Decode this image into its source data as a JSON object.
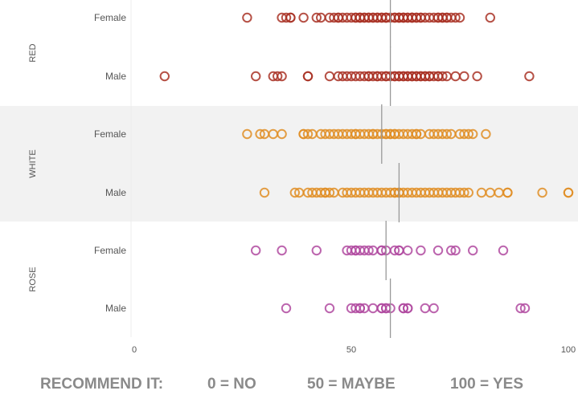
{
  "chart_data": {
    "type": "scatter",
    "x_range": [
      0,
      100
    ],
    "x_ticks": [
      "0",
      "50",
      "100"
    ],
    "reference_lines": "group mean",
    "colors": {
      "RED": "#a93226",
      "WHITE": "#e08e24",
      "ROSE": "#b04aa0"
    },
    "groups": [
      {
        "name": "RED",
        "rows": [
          {
            "label": "Female",
            "mean": 59,
            "values": [
              26,
              34,
              35,
              36,
              36,
              39,
              42,
              43,
              45,
              46,
              47,
              47,
              48,
              49,
              50,
              51,
              51,
              52,
              52,
              52,
              53,
              53,
              54,
              54,
              55,
              55,
              56,
              56,
              57,
              57,
              58,
              58,
              58,
              59,
              60,
              60,
              61,
              61,
              61,
              62,
              62,
              62,
              63,
              63,
              64,
              64,
              64,
              65,
              65,
              66,
              66,
              67,
              68,
              69,
              70,
              70,
              71,
              71,
              72,
              72,
              73,
              74,
              75,
              82
            ]
          },
          {
            "label": "Male",
            "mean": 59,
            "values": [
              7,
              28,
              32,
              33,
              34,
              40,
              40,
              45,
              47,
              48,
              49,
              50,
              51,
              52,
              53,
              54,
              54,
              55,
              56,
              56,
              57,
              58,
              58,
              59,
              60,
              60,
              61,
              61,
              62,
              62,
              63,
              63,
              64,
              64,
              65,
              65,
              66,
              66,
              67,
              67,
              68,
              68,
              69,
              70,
              70,
              71,
              72,
              74,
              76,
              79,
              91
            ]
          }
        ]
      },
      {
        "name": "WHITE",
        "rows": [
          {
            "label": "Female",
            "mean": 57,
            "values": [
              26,
              29,
              30,
              32,
              34,
              39,
              39,
              40,
              41,
              43,
              44,
              45,
              46,
              47,
              48,
              49,
              50,
              51,
              51,
              52,
              53,
              54,
              55,
              55,
              56,
              57,
              58,
              58,
              59,
              59,
              60,
              60,
              61,
              62,
              63,
              64,
              65,
              65,
              66,
              68,
              69,
              70,
              71,
              72,
              73,
              75,
              76,
              77,
              78,
              81
            ]
          },
          {
            "label": "Male",
            "mean": 61,
            "values": [
              30,
              37,
              38,
              40,
              41,
              42,
              43,
              44,
              44,
              45,
              46,
              48,
              49,
              50,
              51,
              52,
              53,
              54,
              55,
              56,
              57,
              58,
              59,
              60,
              60,
              61,
              61,
              62,
              63,
              64,
              65,
              66,
              67,
              68,
              69,
              70,
              71,
              72,
              73,
              74,
              75,
              76,
              77,
              80,
              82,
              84,
              86,
              86,
              94,
              100,
              100
            ]
          }
        ]
      },
      {
        "name": "ROSE",
        "rows": [
          {
            "label": "Female",
            "mean": 58,
            "values": [
              28,
              34,
              42,
              49,
              50,
              51,
              51,
              52,
              53,
              54,
              55,
              57,
              57,
              58,
              60,
              61,
              61,
              63,
              66,
              70,
              73,
              74,
              78,
              85
            ]
          },
          {
            "label": "Male",
            "mean": 59,
            "values": [
              35,
              45,
              50,
              51,
              52,
              52,
              53,
              55,
              57,
              57,
              58,
              58,
              59,
              62,
              62,
              63,
              63,
              67,
              69,
              89,
              90
            ]
          }
        ]
      }
    ]
  },
  "footer": {
    "recommend": "RECOMMEND IT:",
    "no": "0 = NO",
    "maybe": "50 = MAYBE",
    "yes": "100 = YES"
  }
}
